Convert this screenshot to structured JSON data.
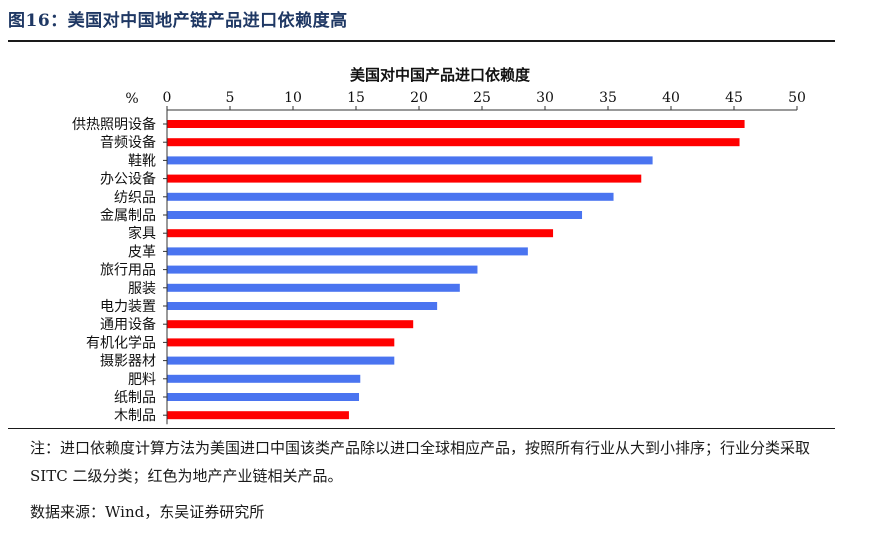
{
  "figure": {
    "title": "图16：美国对中国地产链产品进口依赖度高",
    "note": "注：进口依赖度计算方法为美国进口中国该类产品除以进口全球相应产品，按照所有行业从大到小排序；行业分类采取 SITC 二级分类；红色为地产产业链相关产品。",
    "source": "数据来源：Wind，东吴证券研究所"
  },
  "colors": {
    "real_estate": "#ff0000",
    "other": "#4a74f0",
    "title": "#1f3864"
  },
  "chart_data": {
    "type": "bar",
    "orientation": "horizontal",
    "title": "美国对中国产品进口依赖度",
    "xlabel": "%",
    "xlim": [
      0,
      50
    ],
    "xticks": [
      0,
      5,
      10,
      15,
      20,
      25,
      30,
      35,
      40,
      45,
      50
    ],
    "grid": false,
    "legend": "none",
    "categories": [
      "供热照明设备",
      "音频设备",
      "鞋靴",
      "办公设备",
      "纺织品",
      "金属制品",
      "家具",
      "皮革",
      "旅行用品",
      "服装",
      "电力装置",
      "通用设备",
      "有机化学品",
      "摄影器材",
      "肥料",
      "纸制品",
      "木制品"
    ],
    "values": [
      45.8,
      45.4,
      38.5,
      37.6,
      35.4,
      32.9,
      30.6,
      28.6,
      24.6,
      23.2,
      21.4,
      19.5,
      18.0,
      18.0,
      15.3,
      15.2,
      14.4
    ],
    "real_estate_chain": [
      true,
      true,
      false,
      true,
      false,
      false,
      true,
      false,
      false,
      false,
      false,
      true,
      true,
      false,
      false,
      false,
      true
    ]
  }
}
